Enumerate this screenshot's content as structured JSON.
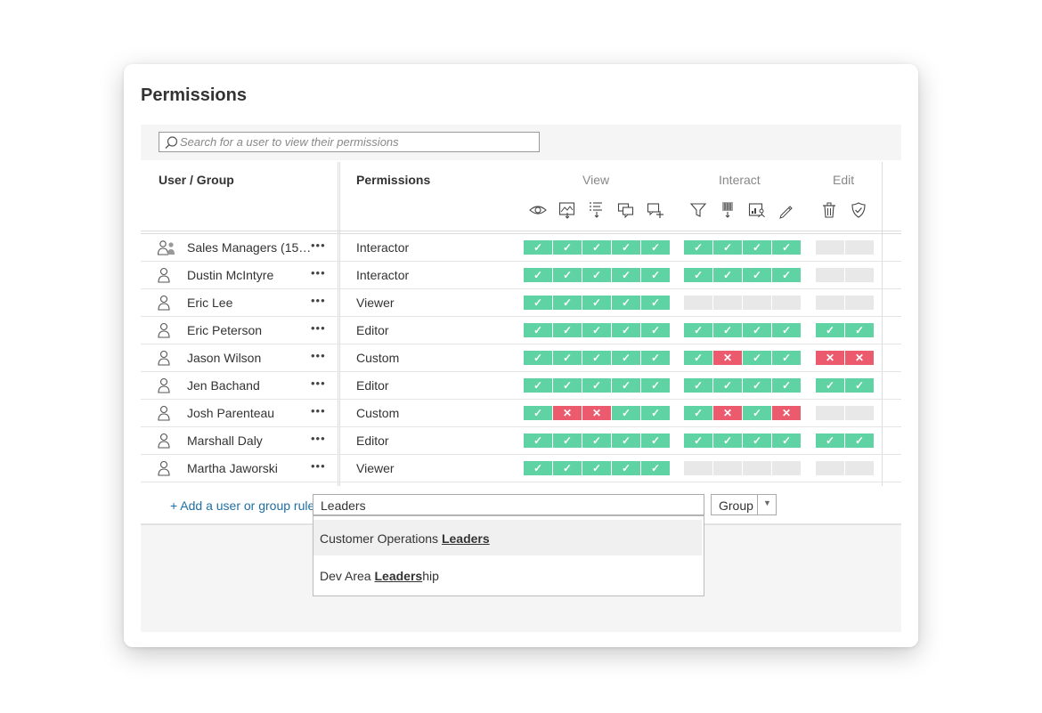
{
  "title": "Permissions",
  "search": {
    "placeholder": "Search for a user to view their permissions"
  },
  "headers": {
    "user_group": "User / Group",
    "permissions": "Permissions",
    "view": "View",
    "interact": "Interact",
    "edit": "Edit"
  },
  "capability_icons": {
    "view": [
      "view-eye-icon",
      "download-image-icon",
      "download-summary-data-icon",
      "view-comments-icon",
      "add-comment-icon"
    ],
    "interact": [
      "filter-icon",
      "download-full-data-icon",
      "share-customized-icon",
      "web-edit-icon"
    ],
    "edit": [
      "delete-icon",
      "set-permissions-icon"
    ]
  },
  "colors": {
    "allow": "#5fd3a3",
    "deny": "#ec5a6e",
    "unspecified": "#e8e8e8",
    "link": "#1f6fa5"
  },
  "symbols": {
    "allow": "✓",
    "deny": "✕",
    "more": "•••"
  },
  "rows": [
    {
      "name": "Sales Managers (15…",
      "type": "group",
      "role": "Interactor",
      "view": [
        "allow",
        "allow",
        "allow",
        "allow",
        "allow"
      ],
      "interact": [
        "allow",
        "allow",
        "allow",
        "allow"
      ],
      "edit": [
        "none",
        "none"
      ]
    },
    {
      "name": "Dustin McIntyre",
      "type": "user",
      "role": "Interactor",
      "view": [
        "allow",
        "allow",
        "allow",
        "allow",
        "allow"
      ],
      "interact": [
        "allow",
        "allow",
        "allow",
        "allow"
      ],
      "edit": [
        "none",
        "none"
      ]
    },
    {
      "name": "Eric Lee",
      "type": "user",
      "role": "Viewer",
      "view": [
        "allow",
        "allow",
        "allow",
        "allow",
        "allow"
      ],
      "interact": [
        "none",
        "none",
        "none",
        "none"
      ],
      "edit": [
        "none",
        "none"
      ]
    },
    {
      "name": "Eric Peterson",
      "type": "user",
      "role": "Editor",
      "view": [
        "allow",
        "allow",
        "allow",
        "allow",
        "allow"
      ],
      "interact": [
        "allow",
        "allow",
        "allow",
        "allow"
      ],
      "edit": [
        "allow",
        "allow"
      ]
    },
    {
      "name": "Jason Wilson",
      "type": "user",
      "role": "Custom",
      "view": [
        "allow",
        "allow",
        "allow",
        "allow",
        "allow"
      ],
      "interact": [
        "allow",
        "deny",
        "allow",
        "allow"
      ],
      "edit": [
        "deny",
        "deny"
      ]
    },
    {
      "name": "Jen Bachand",
      "type": "user",
      "role": "Editor",
      "view": [
        "allow",
        "allow",
        "allow",
        "allow",
        "allow"
      ],
      "interact": [
        "allow",
        "allow",
        "allow",
        "allow"
      ],
      "edit": [
        "allow",
        "allow"
      ]
    },
    {
      "name": "Josh Parenteau",
      "type": "user",
      "role": "Custom",
      "view": [
        "allow",
        "deny",
        "deny",
        "allow",
        "allow"
      ],
      "interact": [
        "allow",
        "deny",
        "allow",
        "deny"
      ],
      "edit": [
        "none",
        "none"
      ]
    },
    {
      "name": "Marshall Daly",
      "type": "user",
      "role": "Editor",
      "view": [
        "allow",
        "allow",
        "allow",
        "allow",
        "allow"
      ],
      "interact": [
        "allow",
        "allow",
        "allow",
        "allow"
      ],
      "edit": [
        "allow",
        "allow"
      ]
    },
    {
      "name": "Martha Jaworski",
      "type": "user",
      "role": "Viewer",
      "view": [
        "allow",
        "allow",
        "allow",
        "allow",
        "allow"
      ],
      "interact": [
        "none",
        "none",
        "none",
        "none"
      ],
      "edit": [
        "none",
        "none"
      ]
    }
  ],
  "add_rule": {
    "link_label": "+ Add a user or group rule",
    "input_value": "Leaders",
    "type_select": "Group"
  },
  "suggestions": [
    {
      "prefix": "Customer Operations ",
      "match": "Leaders",
      "suffix": ""
    },
    {
      "prefix": "Dev Area ",
      "match": "Leaders",
      "suffix": "hip"
    }
  ]
}
